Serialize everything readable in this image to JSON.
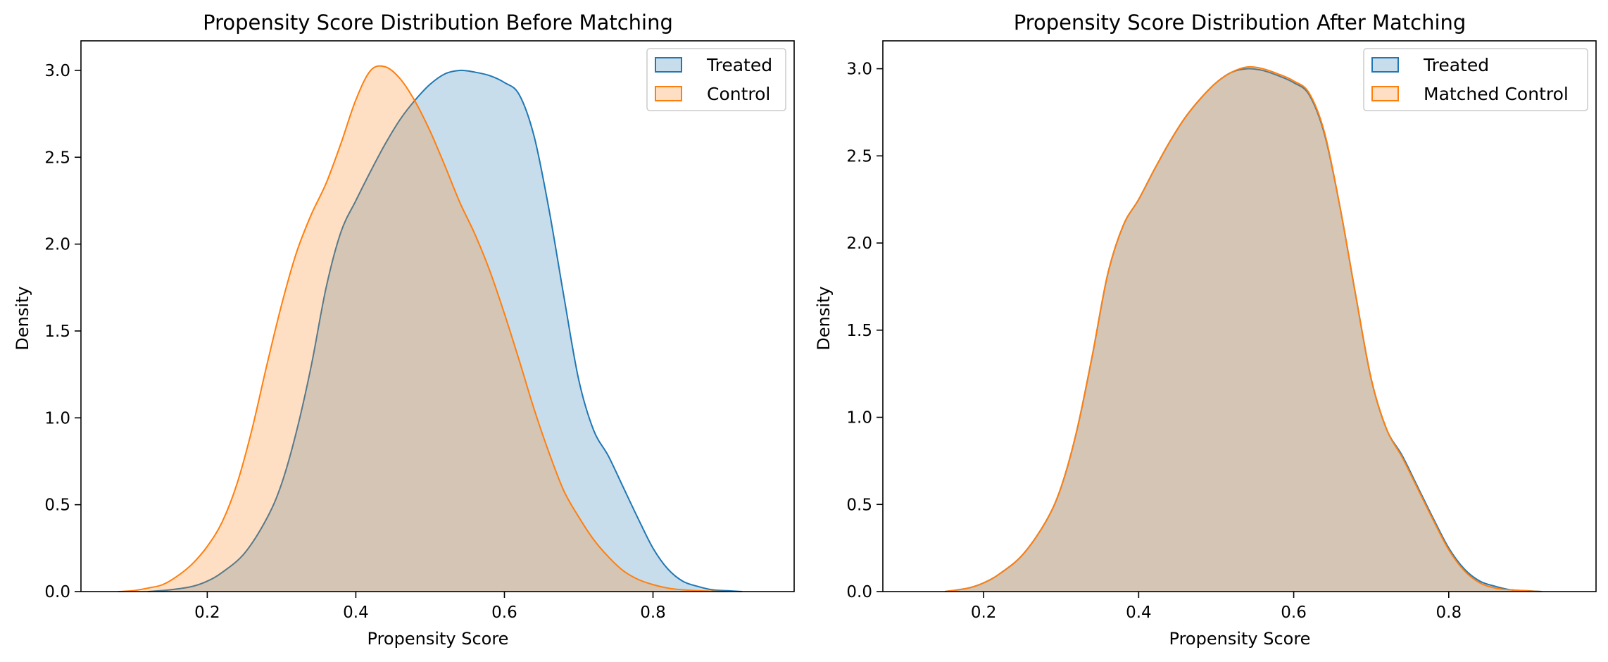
{
  "colors": {
    "treated": "#1f77b4",
    "control": "#ff7f0e"
  },
  "chart_data": [
    {
      "type": "area",
      "title": "Propensity Score Distribution Before Matching",
      "xlabel": "Propensity Score",
      "ylabel": "Density",
      "xlim": [
        0.03,
        0.99
      ],
      "ylim": [
        0.0,
        3.17
      ],
      "xticks": [
        0.2,
        0.4,
        0.6,
        0.8
      ],
      "yticks": [
        0.0,
        0.5,
        1.0,
        1.5,
        2.0,
        2.5,
        3.0
      ],
      "xtick_labels": [
        "0.2",
        "0.4",
        "0.6",
        "0.8"
      ],
      "ytick_labels": [
        "0.0",
        "0.5",
        "1.0",
        "1.5",
        "2.0",
        "2.5",
        "3.0"
      ],
      "legend_position": "top-right",
      "grid": false,
      "series": [
        {
          "name": "Treated",
          "color_key": "treated",
          "x": [
            0.12,
            0.15,
            0.18,
            0.2,
            0.22,
            0.25,
            0.28,
            0.3,
            0.32,
            0.34,
            0.36,
            0.38,
            0.4,
            0.42,
            0.44,
            0.46,
            0.48,
            0.5,
            0.52,
            0.54,
            0.56,
            0.58,
            0.6,
            0.62,
            0.64,
            0.66,
            0.68,
            0.7,
            0.72,
            0.74,
            0.76,
            0.78,
            0.8,
            0.82,
            0.84,
            0.86,
            0.88,
            0.9,
            0.92
          ],
          "y": [
            0.0,
            0.01,
            0.03,
            0.06,
            0.11,
            0.22,
            0.42,
            0.62,
            0.92,
            1.3,
            1.75,
            2.07,
            2.25,
            2.42,
            2.58,
            2.72,
            2.83,
            2.92,
            2.98,
            3.0,
            2.99,
            2.97,
            2.93,
            2.86,
            2.62,
            2.2,
            1.7,
            1.22,
            0.93,
            0.78,
            0.6,
            0.42,
            0.25,
            0.13,
            0.06,
            0.03,
            0.01,
            0.005,
            0.0
          ]
        },
        {
          "name": "Control",
          "color_key": "control",
          "x": [
            0.08,
            0.1,
            0.12,
            0.14,
            0.16,
            0.18,
            0.2,
            0.22,
            0.24,
            0.26,
            0.28,
            0.3,
            0.32,
            0.34,
            0.36,
            0.38,
            0.4,
            0.42,
            0.44,
            0.46,
            0.48,
            0.5,
            0.52,
            0.54,
            0.56,
            0.58,
            0.6,
            0.62,
            0.64,
            0.66,
            0.68,
            0.7,
            0.72,
            0.74,
            0.76,
            0.78,
            0.8,
            0.82,
            0.84,
            0.86,
            0.88,
            0.9
          ],
          "y": [
            0.0,
            0.005,
            0.02,
            0.04,
            0.09,
            0.16,
            0.26,
            0.4,
            0.62,
            0.93,
            1.3,
            1.65,
            1.95,
            2.17,
            2.35,
            2.58,
            2.83,
            3.0,
            3.02,
            2.95,
            2.82,
            2.65,
            2.45,
            2.24,
            2.06,
            1.85,
            1.6,
            1.33,
            1.05,
            0.8,
            0.58,
            0.43,
            0.3,
            0.2,
            0.12,
            0.07,
            0.04,
            0.02,
            0.01,
            0.005,
            0.002,
            0.0
          ]
        }
      ]
    },
    {
      "type": "area",
      "title": "Propensity Score Distribution After Matching",
      "xlabel": "Propensity Score",
      "ylabel": "Density",
      "xlim": [
        0.07,
        0.99
      ],
      "ylim": [
        0.0,
        3.16
      ],
      "xticks": [
        0.2,
        0.4,
        0.6,
        0.8
      ],
      "yticks": [
        0.0,
        0.5,
        1.0,
        1.5,
        2.0,
        2.5,
        3.0
      ],
      "xtick_labels": [
        "0.2",
        "0.4",
        "0.6",
        "0.8"
      ],
      "ytick_labels": [
        "0.0",
        "0.5",
        "1.0",
        "1.5",
        "2.0",
        "2.5",
        "3.0"
      ],
      "legend_position": "top-right",
      "grid": false,
      "series": [
        {
          "name": "Treated",
          "color_key": "treated",
          "x": [
            0.15,
            0.18,
            0.2,
            0.22,
            0.25,
            0.28,
            0.3,
            0.32,
            0.34,
            0.36,
            0.38,
            0.4,
            0.42,
            0.44,
            0.46,
            0.48,
            0.5,
            0.52,
            0.54,
            0.56,
            0.58,
            0.6,
            0.62,
            0.64,
            0.66,
            0.68,
            0.7,
            0.72,
            0.74,
            0.76,
            0.78,
            0.8,
            0.82,
            0.84,
            0.86,
            0.88,
            0.9,
            0.92
          ],
          "y": [
            0.0,
            0.02,
            0.05,
            0.1,
            0.21,
            0.4,
            0.6,
            0.92,
            1.35,
            1.82,
            2.1,
            2.25,
            2.42,
            2.58,
            2.72,
            2.83,
            2.92,
            2.98,
            3.0,
            2.99,
            2.96,
            2.92,
            2.85,
            2.62,
            2.2,
            1.7,
            1.22,
            0.93,
            0.78,
            0.6,
            0.42,
            0.25,
            0.13,
            0.06,
            0.03,
            0.01,
            0.005,
            0.0
          ]
        },
        {
          "name": "Matched Control",
          "color_key": "control",
          "x": [
            0.15,
            0.18,
            0.2,
            0.22,
            0.25,
            0.28,
            0.3,
            0.32,
            0.34,
            0.36,
            0.38,
            0.4,
            0.42,
            0.44,
            0.46,
            0.48,
            0.5,
            0.52,
            0.54,
            0.56,
            0.58,
            0.6,
            0.62,
            0.64,
            0.66,
            0.68,
            0.7,
            0.72,
            0.74,
            0.76,
            0.78,
            0.8,
            0.82,
            0.84,
            0.86,
            0.88,
            0.9,
            0.92
          ],
          "y": [
            0.0,
            0.02,
            0.05,
            0.1,
            0.21,
            0.4,
            0.6,
            0.92,
            1.35,
            1.82,
            2.1,
            2.25,
            2.42,
            2.58,
            2.72,
            2.83,
            2.92,
            2.98,
            3.01,
            3.0,
            2.97,
            2.93,
            2.86,
            2.63,
            2.2,
            1.7,
            1.22,
            0.93,
            0.77,
            0.59,
            0.41,
            0.24,
            0.12,
            0.05,
            0.02,
            0.01,
            0.004,
            0.0
          ]
        }
      ]
    }
  ]
}
